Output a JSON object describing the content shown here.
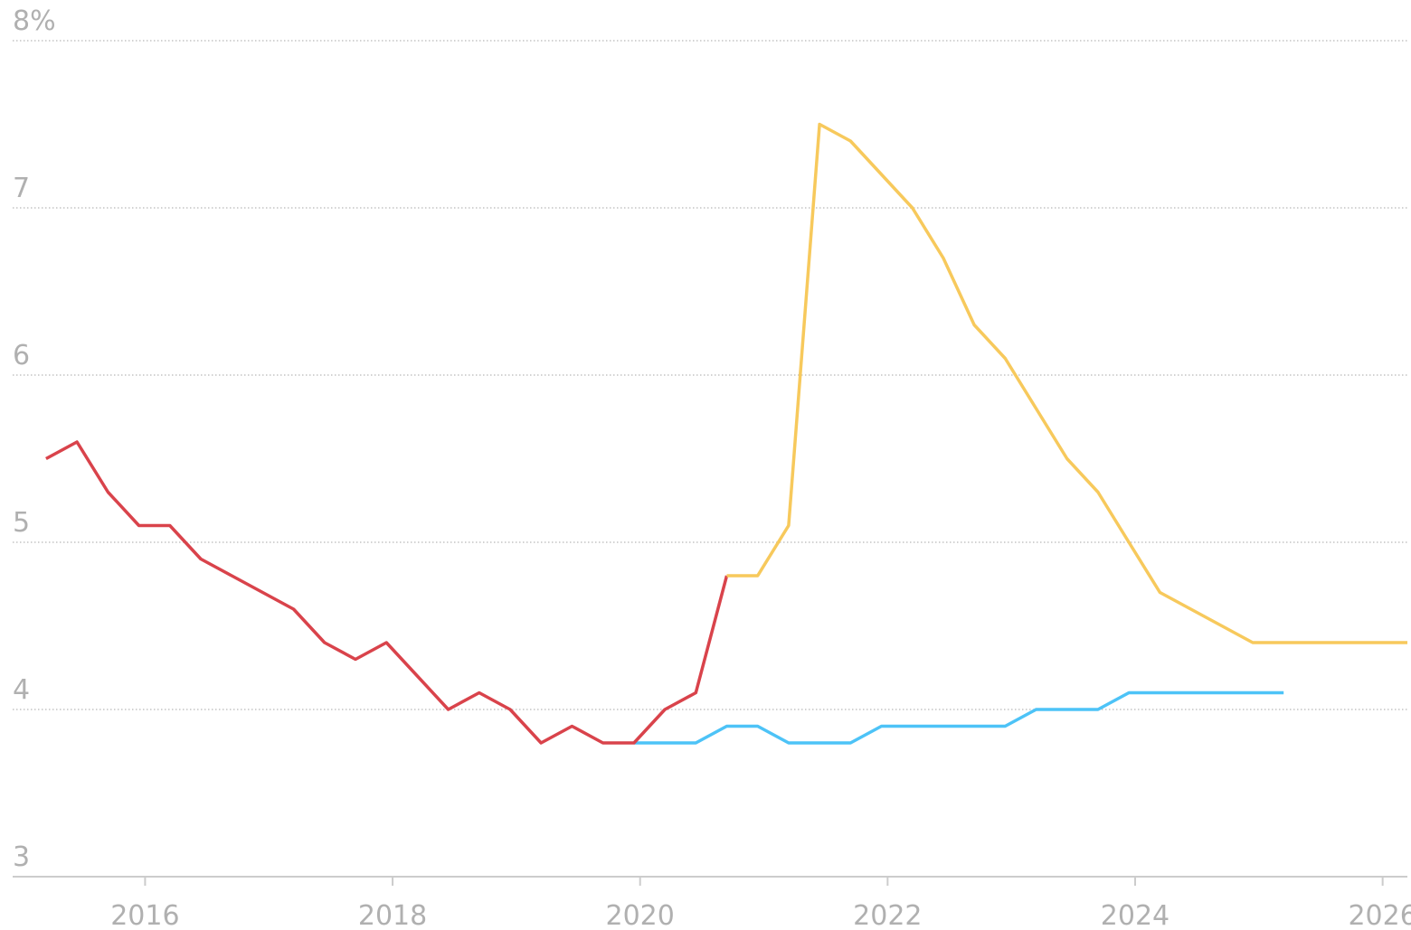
{
  "chart_data": {
    "type": "line",
    "x": [
      2015.2,
      2015.45,
      2015.7,
      2015.95,
      2016.2,
      2016.45,
      2016.7,
      2016.95,
      2017.2,
      2017.45,
      2017.7,
      2017.95,
      2018.2,
      2018.45,
      2018.7,
      2018.95,
      2019.2,
      2019.45,
      2019.7,
      2019.95,
      2020.2,
      2020.45,
      2020.7,
      2020.95,
      2021.2,
      2021.45,
      2021.7,
      2021.95,
      2022.2,
      2022.45,
      2022.7,
      2022.95,
      2023.2,
      2023.45,
      2023.7,
      2023.95,
      2024.2,
      2024.45,
      2024.7,
      2024.95,
      2025.2,
      2025.45,
      2025.7,
      2025.95,
      2026.2
    ],
    "series": [
      {
        "color": "#4dc3f7",
        "values": [
          null,
          null,
          null,
          null,
          null,
          null,
          null,
          null,
          null,
          null,
          null,
          null,
          null,
          null,
          null,
          null,
          null,
          null,
          null,
          3.8,
          3.8,
          3.8,
          3.9,
          3.9,
          3.8,
          3.8,
          3.8,
          3.9,
          3.9,
          3.9,
          3.9,
          3.9,
          4.0,
          4.0,
          4.0,
          4.1,
          4.1,
          4.1,
          4.1,
          4.1,
          4.1,
          null,
          null,
          null,
          null
        ]
      },
      {
        "color": "#d9434b",
        "values": [
          5.5,
          5.6,
          5.3,
          5.1,
          5.1,
          4.9,
          4.8,
          4.7,
          4.6,
          4.4,
          4.3,
          4.4,
          4.2,
          4.0,
          4.1,
          4.0,
          3.8,
          3.9,
          3.8,
          3.8,
          4.0,
          4.1,
          4.8,
          null,
          null,
          null,
          null,
          null,
          null,
          null,
          null,
          null,
          null,
          null,
          null,
          null,
          null,
          null,
          null,
          null,
          null,
          null,
          null,
          null,
          null
        ]
      },
      {
        "color": "#f7c95c",
        "values": [
          null,
          null,
          null,
          null,
          null,
          null,
          null,
          null,
          null,
          null,
          null,
          null,
          null,
          null,
          null,
          null,
          null,
          null,
          null,
          null,
          null,
          null,
          4.8,
          4.8,
          5.1,
          7.5,
          7.4,
          7.2,
          7.0,
          6.7,
          6.3,
          6.1,
          5.8,
          5.5,
          5.3,
          5.0,
          4.7,
          4.6,
          4.5,
          4.4,
          4.4,
          4.4,
          4.4,
          4.4,
          4.4
        ]
      }
    ],
    "xlim": [
      2014.93,
      2026.2
    ],
    "xticks": [
      2016,
      2018,
      2020,
      2022,
      2024,
      2026
    ],
    "ylim": [
      3,
      8
    ],
    "yticks": [
      3,
      4,
      5,
      6,
      7,
      {
        "value": 8,
        "label": "8%"
      }
    ],
    "grid": true
  }
}
